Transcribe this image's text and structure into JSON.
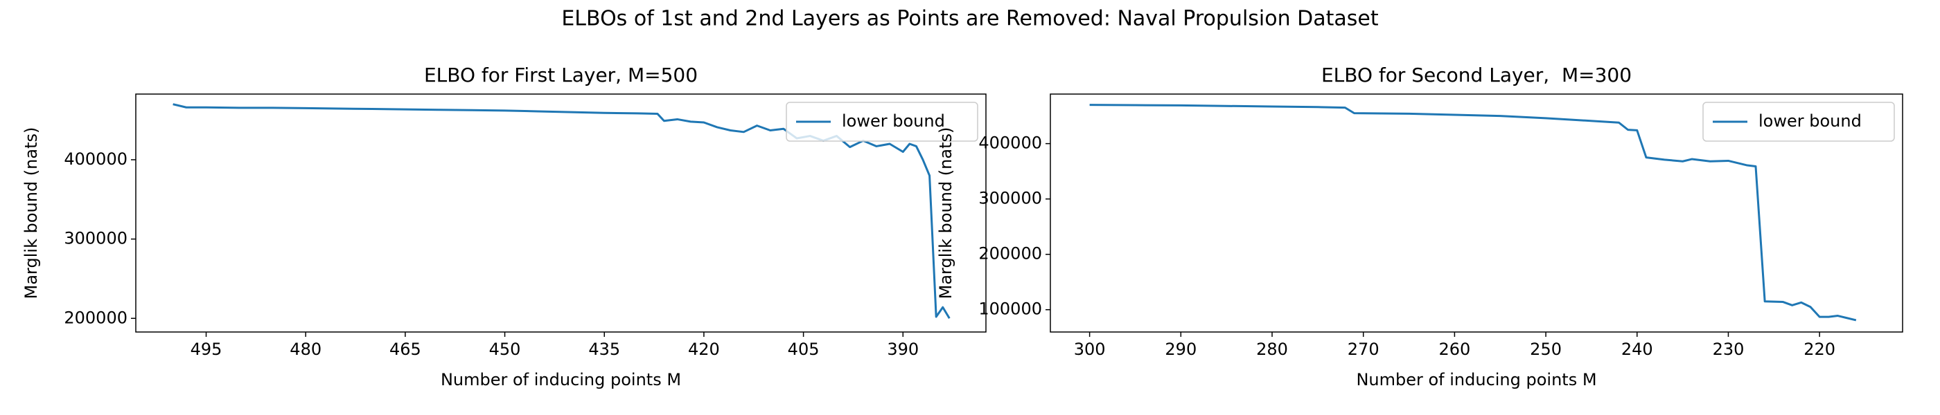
{
  "title": "ELBOs of 1st and 2nd Layers as Points are Removed: Naval Propulsion Dataset",
  "chart_data": [
    {
      "type": "line",
      "title": "ELBO for First Layer, M=500",
      "x_label": "Number of inducing points M",
      "y_label": "Marglik bound (nats)",
      "x": [
        500,
        498,
        495,
        490,
        485,
        480,
        475,
        470,
        465,
        460,
        455,
        450,
        445,
        440,
        435,
        430,
        427,
        426,
        424,
        422,
        420,
        418,
        416,
        414,
        412,
        410,
        408,
        406,
        404,
        402,
        400,
        398,
        396,
        394,
        392,
        390,
        389,
        388,
        387,
        386,
        385,
        384,
        383
      ],
      "series": [
        {
          "name": "lower bound",
          "color": "#1f77b4",
          "values": [
            470000,
            466000,
            466000,
            465500,
            465500,
            465000,
            464500,
            464000,
            463500,
            463000,
            462500,
            462000,
            461000,
            460000,
            459000,
            458500,
            458000,
            449000,
            451000,
            448000,
            447000,
            441000,
            437000,
            435000,
            443000,
            437000,
            439000,
            427000,
            430000,
            424000,
            430000,
            416000,
            424000,
            417000,
            420000,
            410000,
            420000,
            417000,
            400000,
            380000,
            202000,
            214000,
            200000
          ]
        }
      ],
      "xlim": [
        505.6,
        377.5
      ],
      "xticks": [
        495,
        480,
        465,
        450,
        435,
        420,
        405,
        390
      ],
      "ylim": [
        182800,
        482800
      ],
      "yticks": [
        200000,
        300000,
        400000
      ],
      "legend": "upper right"
    },
    {
      "type": "line",
      "title": "ELBO for Second Layer,  M=300",
      "x_label": "Number of inducing points M",
      "y_label": "Marglik bound (nats)",
      "x": [
        300,
        295,
        290,
        285,
        280,
        275,
        272,
        271,
        265,
        260,
        255,
        250,
        247,
        244,
        242,
        241,
        240,
        239,
        237,
        235,
        234,
        232,
        230,
        228,
        227,
        226,
        224,
        223,
        222,
        221,
        220,
        219,
        218,
        217,
        216
      ],
      "series": [
        {
          "name": "lower bound",
          "color": "#1f77b4",
          "values": [
            470000,
            469500,
            469000,
            468000,
            467000,
            466000,
            465000,
            455000,
            454000,
            452000,
            450000,
            446000,
            443000,
            440000,
            438000,
            425000,
            424000,
            375000,
            371000,
            368000,
            372000,
            368000,
            369000,
            361000,
            359000,
            115000,
            114000,
            108000,
            113000,
            105000,
            87000,
            87000,
            89000,
            85000,
            81000
          ]
        }
      ],
      "xlim": [
        304.3,
        210.9
      ],
      "xticks": [
        300,
        290,
        280,
        270,
        260,
        250,
        240,
        230,
        220
      ],
      "ylim": [
        59700,
        489500
      ],
      "yticks": [
        100000,
        200000,
        300000,
        400000
      ],
      "legend": "upper right"
    }
  ]
}
